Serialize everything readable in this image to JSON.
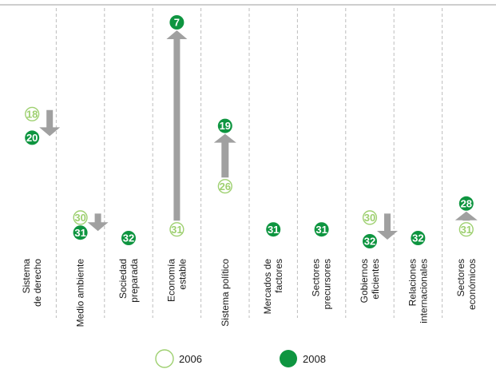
{
  "chart_data": {
    "type": "scatter",
    "categories": [
      [
        "Sistema",
        "de derecho"
      ],
      [
        "Medio ambiente"
      ],
      [
        "Sociedad",
        "preparada"
      ],
      [
        "Economía",
        "estable"
      ],
      [
        "Sistema político"
      ],
      [
        "Mercados de",
        "factores"
      ],
      [
        "Sectores",
        "precursores"
      ],
      [
        "Gobiernos",
        "eficientes"
      ],
      [
        "Relaciones",
        "internacionales"
      ],
      [
        "Sectores",
        "económicos"
      ]
    ],
    "series": [
      {
        "name": "2006",
        "values": [
          18,
          30,
          null,
          31,
          26,
          null,
          null,
          30,
          null,
          31
        ]
      },
      {
        "name": "2008",
        "values": [
          20,
          31,
          32,
          7,
          19,
          31,
          31,
          32,
          32,
          28
        ]
      }
    ],
    "y_direction": "inverted",
    "ylim": [
      7,
      32
    ],
    "grid": "vertical-dashed",
    "legend": "bottom-center",
    "colors": {
      "series_2006": "#9ed070",
      "series_2008": "#0e9540",
      "arrow": "#a0a0a0",
      "divider": "#bdbdbd",
      "text": "#1a1a1a"
    }
  }
}
